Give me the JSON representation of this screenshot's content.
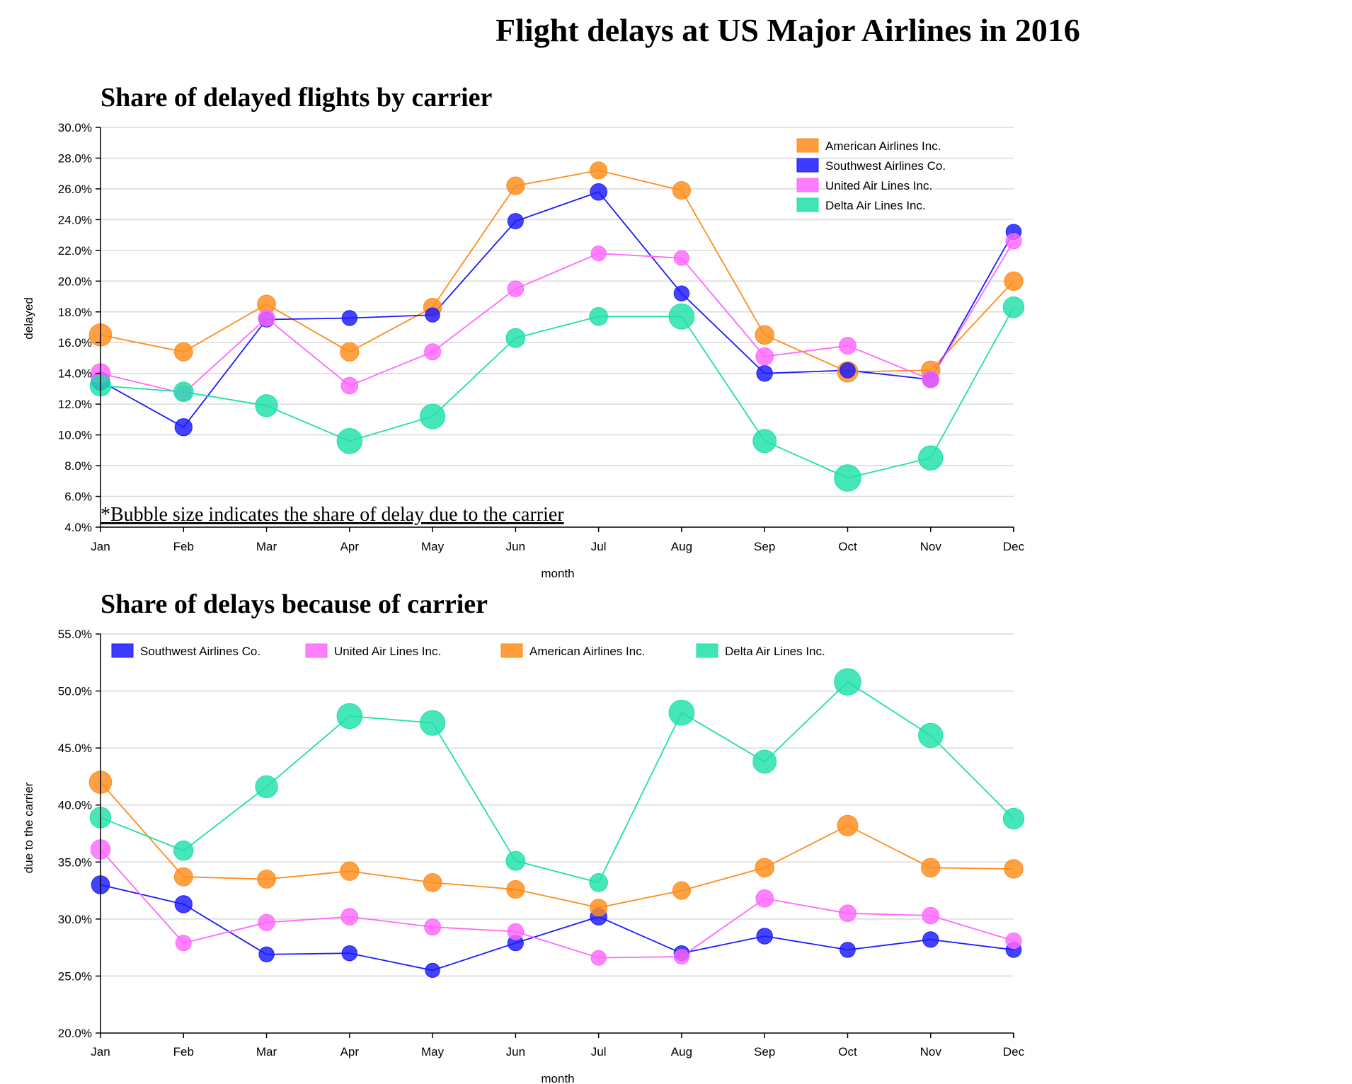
{
  "page_title": "Flight delays at US Major Airlines in 2016",
  "colors": {
    "American Airlines Inc.": "#ff8c1a",
    "Southwest Airlines Co.": "#1a1aff",
    "United Air Lines Inc.": "#ff66ff",
    "Delta Air Lines Inc.": "#1ee0a8"
  },
  "chart_data": [
    {
      "type": "line",
      "title": "Share of delayed flights by carrier",
      "xlabel": "month",
      "ylabel": "delayed",
      "note": "*Bubble size indicates the share of delay due to the carrier",
      "categories": [
        "Jan",
        "Feb",
        "Mar",
        "Apr",
        "May",
        "Jun",
        "Jul",
        "Aug",
        "Sep",
        "Oct",
        "Nov",
        "Dec"
      ],
      "ylim": [
        4.0,
        30.0
      ],
      "yticks": [
        "30.0%",
        "28.0%",
        "26.0%",
        "24.0%",
        "22.0%",
        "20.0%",
        "18.0%",
        "16.0%",
        "14.0%",
        "12.0%",
        "10.0%",
        "8.0%",
        "6.0%",
        "4.0%"
      ],
      "grid": true,
      "legend_position": "top-right",
      "legend": [
        "American Airlines Inc.",
        "Southwest Airlines Co.",
        "United Air Lines Inc.",
        "Delta Air Lines Inc."
      ],
      "series": [
        {
          "name": "American Airlines Inc.",
          "values": [
            16.5,
            15.4,
            18.5,
            15.4,
            18.3,
            26.2,
            27.2,
            25.9,
            16.5,
            14.1,
            14.2,
            20.0
          ]
        },
        {
          "name": "Southwest Airlines Co.",
          "values": [
            13.5,
            10.5,
            17.5,
            17.6,
            17.8,
            23.9,
            25.8,
            19.2,
            14.0,
            14.2,
            13.6,
            23.2
          ]
        },
        {
          "name": "United Air Lines Inc.",
          "values": [
            14.0,
            12.7,
            17.6,
            13.2,
            15.4,
            19.5,
            21.8,
            21.5,
            15.1,
            15.8,
            13.6,
            22.6
          ]
        },
        {
          "name": "Delta Air Lines Inc.",
          "values": [
            13.2,
            12.8,
            11.9,
            9.6,
            11.2,
            16.3,
            17.7,
            17.7,
            9.6,
            7.2,
            8.5,
            18.3
          ]
        }
      ],
      "bubble_values": [
        {
          "name": "American Airlines Inc.",
          "values": [
            42.0,
            33.7,
            33.5,
            34.2,
            33.2,
            32.6,
            31.0,
            32.5,
            34.5,
            38.2,
            34.5,
            34.4
          ]
        },
        {
          "name": "Southwest Airlines Co.",
          "values": [
            33.0,
            31.3,
            26.9,
            27.0,
            25.5,
            27.9,
            30.2,
            27.0,
            28.5,
            27.3,
            28.2,
            27.3
          ]
        },
        {
          "name": "United Air Lines Inc.",
          "values": [
            36.1,
            27.9,
            29.7,
            30.2,
            29.3,
            28.9,
            26.6,
            26.7,
            31.8,
            30.5,
            30.3,
            28.1
          ]
        },
        {
          "name": "Delta Air Lines Inc.",
          "values": [
            38.9,
            36.0,
            41.6,
            47.8,
            47.2,
            35.1,
            33.2,
            48.1,
            43.8,
            50.8,
            46.1,
            38.8
          ]
        }
      ]
    },
    {
      "type": "line",
      "title": "Share of delays because of carrier",
      "xlabel": "month",
      "ylabel": "due to the carrier",
      "categories": [
        "Jan",
        "Feb",
        "Mar",
        "Apr",
        "May",
        "Jun",
        "Jul",
        "Aug",
        "Sep",
        "Oct",
        "Nov",
        "Dec"
      ],
      "ylim": [
        20.0,
        55.0
      ],
      "yticks": [
        "55.0%",
        "50.0%",
        "45.0%",
        "40.0%",
        "35.0%",
        "30.0%",
        "25.0%",
        "20.0%"
      ],
      "grid": true,
      "legend_position": "top",
      "legend": [
        "Southwest Airlines Co.",
        "United Air Lines Inc.",
        "American Airlines Inc.",
        "Delta Air Lines Inc."
      ],
      "series": [
        {
          "name": "Southwest Airlines Co.",
          "values": [
            33.0,
            31.3,
            26.9,
            27.0,
            25.5,
            27.9,
            30.2,
            27.0,
            28.5,
            27.3,
            28.2,
            27.3
          ]
        },
        {
          "name": "United Air Lines Inc.",
          "values": [
            36.1,
            27.9,
            29.7,
            30.2,
            29.3,
            28.9,
            26.6,
            26.7,
            31.8,
            30.5,
            30.3,
            28.1
          ]
        },
        {
          "name": "American Airlines Inc.",
          "values": [
            42.0,
            33.7,
            33.5,
            34.2,
            33.2,
            32.6,
            31.0,
            32.5,
            34.5,
            38.2,
            34.5,
            34.4
          ]
        },
        {
          "name": "Delta Air Lines Inc.",
          "values": [
            38.9,
            36.0,
            41.6,
            47.8,
            47.2,
            35.1,
            33.2,
            48.1,
            43.8,
            50.8,
            46.1,
            38.8
          ]
        }
      ]
    }
  ]
}
